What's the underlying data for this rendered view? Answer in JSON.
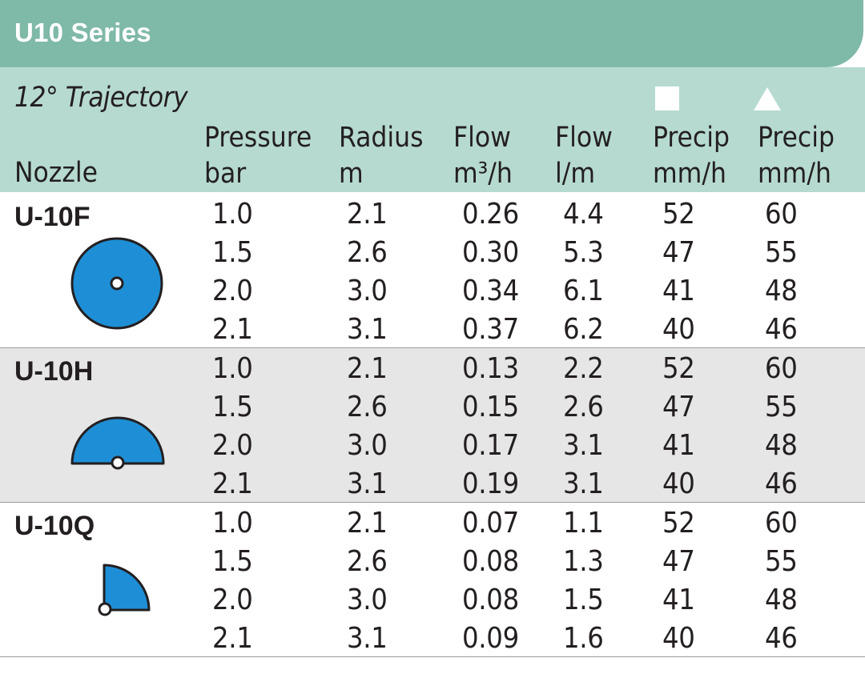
{
  "banner": {
    "title": "U10 Series"
  },
  "header": {
    "trajectory": "12° Trajectory",
    "nozzle_label": "Nozzle",
    "columns": [
      {
        "line1": "Pressure",
        "line2": "bar"
      },
      {
        "line1": "Radius",
        "line2": "m"
      },
      {
        "line1": "Flow",
        "line2": "m³/h"
      },
      {
        "line1": "Flow",
        "line2": "l/m"
      },
      {
        "line1": "Precip",
        "line2": "mm/h"
      },
      {
        "line1": "Precip",
        "line2": "mm/h"
      }
    ],
    "square_symbol_icon": "square-spacing-icon",
    "triangle_symbol_icon": "triangle-spacing-icon"
  },
  "groups": [
    {
      "nozzle": "U-10F",
      "icon": "full-circle-nozzle-icon",
      "rows": [
        [
          "1.0",
          "2.1",
          "0.26",
          "4.4",
          "52",
          "60"
        ],
        [
          "1.5",
          "2.6",
          "0.30",
          "5.3",
          "47",
          "55"
        ],
        [
          "2.0",
          "3.0",
          "0.34",
          "6.1",
          "41",
          "48"
        ],
        [
          "2.1",
          "3.1",
          "0.37",
          "6.2",
          "40",
          "46"
        ]
      ]
    },
    {
      "nozzle": "U-10H",
      "icon": "half-circle-nozzle-icon",
      "rows": [
        [
          "1.0",
          "2.1",
          "0.13",
          "2.2",
          "52",
          "60"
        ],
        [
          "1.5",
          "2.6",
          "0.15",
          "2.6",
          "47",
          "55"
        ],
        [
          "2.0",
          "3.0",
          "0.17",
          "3.1",
          "41",
          "48"
        ],
        [
          "2.1",
          "3.1",
          "0.19",
          "3.1",
          "40",
          "46"
        ]
      ]
    },
    {
      "nozzle": "U-10Q",
      "icon": "quarter-circle-nozzle-icon",
      "rows": [
        [
          "1.0",
          "2.1",
          "0.07",
          "1.1",
          "52",
          "60"
        ],
        [
          "1.5",
          "2.6",
          "0.08",
          "1.3",
          "47",
          "55"
        ],
        [
          "2.0",
          "3.0",
          "0.08",
          "1.5",
          "41",
          "48"
        ],
        [
          "2.1",
          "3.1",
          "0.09",
          "1.6",
          "40",
          "46"
        ]
      ]
    }
  ],
  "colors": {
    "banner": "#7fb9a8",
    "header": "#b6dad0",
    "alt_row": "#e6e6e6",
    "nozzle_fill": "#1e8fd6"
  }
}
